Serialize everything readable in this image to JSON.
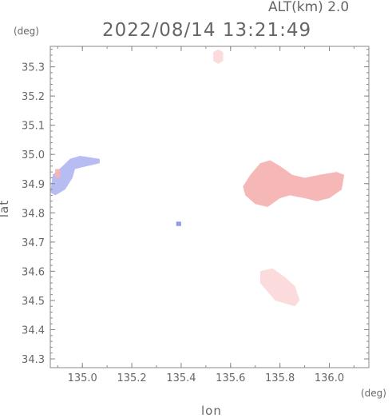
{
  "header": {
    "alt_label": "ALT(km) 2.0",
    "timestamp": "2022/08/14 13:21:49",
    "y_unit": "(deg)",
    "x_unit": "(deg)"
  },
  "chart_data": {
    "type": "heatmap",
    "title": "",
    "xlabel": "lon",
    "ylabel": "lat",
    "xlim": [
      134.87,
      136.16
    ],
    "ylim": [
      34.27,
      35.37
    ],
    "x_ticks": [
      135.0,
      135.2,
      135.4,
      135.6,
      135.8,
      136.0
    ],
    "x_tick_labels": [
      "135.0",
      "135.2",
      "135.4",
      "135.6",
      "135.8",
      "136.0"
    ],
    "y_ticks": [
      34.3,
      34.4,
      34.5,
      34.6,
      34.7,
      34.8,
      34.9,
      35.0,
      35.1,
      35.2,
      35.3
    ],
    "y_tick_labels": [
      "34.3",
      "34.4",
      "34.5",
      "34.6",
      "34.7",
      "34.8",
      "34.9",
      "35.0",
      "35.1",
      "35.2",
      "35.3"
    ],
    "grid": false,
    "colors": {
      "positive": "#f6b3b3",
      "positive_light": "#fbd9d9",
      "negative": "#b3b8f2",
      "negative_strong": "#8f96e8"
    },
    "regions": [
      {
        "name": "",
        "sign": "negative",
        "points": [
          [
            134.87,
            34.87
          ],
          [
            134.88,
            34.93
          ],
          [
            134.92,
            34.96
          ],
          [
            134.95,
            34.985
          ],
          [
            134.99,
            34.995
          ],
          [
            135.03,
            34.99
          ],
          [
            135.07,
            34.985
          ],
          [
            135.07,
            34.97
          ],
          [
            135.02,
            34.96
          ],
          [
            134.97,
            34.95
          ],
          [
            134.96,
            34.92
          ],
          [
            134.93,
            34.88
          ],
          [
            134.89,
            34.86
          ]
        ]
      },
      {
        "name": "",
        "sign": "positive",
        "points": [
          [
            135.65,
            34.89
          ],
          [
            135.68,
            34.93
          ],
          [
            135.72,
            34.97
          ],
          [
            135.76,
            34.98
          ],
          [
            135.8,
            34.96
          ],
          [
            135.85,
            34.93
          ],
          [
            135.9,
            34.92
          ],
          [
            135.96,
            34.93
          ],
          [
            136.03,
            34.94
          ],
          [
            136.06,
            34.93
          ],
          [
            136.05,
            34.88
          ],
          [
            136.0,
            34.85
          ],
          [
            135.95,
            34.84
          ],
          [
            135.9,
            34.85
          ],
          [
            135.84,
            34.86
          ],
          [
            135.8,
            34.85
          ],
          [
            135.75,
            34.82
          ],
          [
            135.7,
            34.83
          ],
          [
            135.66,
            34.86
          ]
        ]
      },
      {
        "name": "",
        "sign": "positive_light",
        "points": [
          [
            135.72,
            34.6
          ],
          [
            135.77,
            34.61
          ],
          [
            135.82,
            34.58
          ],
          [
            135.86,
            34.55
          ],
          [
            135.88,
            34.5
          ],
          [
            135.86,
            34.48
          ],
          [
            135.82,
            34.49
          ],
          [
            135.78,
            34.5
          ],
          [
            135.75,
            34.53
          ],
          [
            135.72,
            34.56
          ]
        ]
      },
      {
        "name": "",
        "sign": "positive_light",
        "points": [
          [
            135.53,
            35.35
          ],
          [
            135.55,
            35.36
          ],
          [
            135.57,
            35.35
          ],
          [
            135.57,
            35.32
          ],
          [
            135.55,
            35.31
          ],
          [
            135.53,
            35.32
          ]
        ]
      },
      {
        "name": "",
        "sign": "positive",
        "points": [
          [
            134.89,
            34.95
          ],
          [
            134.91,
            34.95
          ],
          [
            134.91,
            34.92
          ],
          [
            134.89,
            34.92
          ]
        ]
      },
      {
        "name": "",
        "sign": "negative_strong",
        "points": [
          [
            135.38,
            34.77
          ],
          [
            135.4,
            34.77
          ],
          [
            135.4,
            34.755
          ],
          [
            135.38,
            34.755
          ]
        ]
      }
    ]
  }
}
